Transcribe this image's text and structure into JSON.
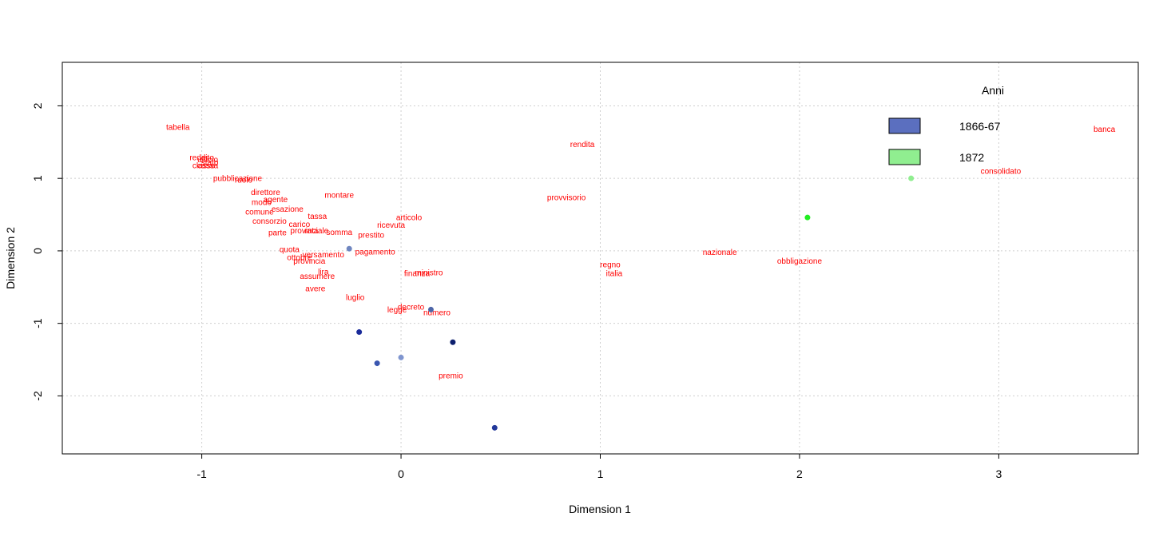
{
  "chart_data": {
    "type": "scatter",
    "title": "",
    "xlabel": "Dimension 1",
    "ylabel": "Dimension 2",
    "xlim": [
      -1.7,
      3.7
    ],
    "ylim": [
      -2.8,
      2.6
    ],
    "xticks": [
      -1,
      0,
      1,
      2,
      3
    ],
    "yticks": [
      -2,
      -1,
      0,
      1,
      2
    ],
    "grid": true,
    "label_color": "#ff0000",
    "words": [
      {
        "text": "tabella",
        "x": -1.12,
        "y": 1.71
      },
      {
        "text": "reddito",
        "x": -1.0,
        "y": 1.29
      },
      {
        "text": "ufficio",
        "x": -0.97,
        "y": 1.26
      },
      {
        "text": "stato",
        "x": -0.96,
        "y": 1.22
      },
      {
        "text": "classe",
        "x": -0.99,
        "y": 1.18
      },
      {
        "text": "cassa",
        "x": -0.97,
        "y": 1.18
      },
      {
        "text": "pubblicazione",
        "x": -0.82,
        "y": 1.0
      },
      {
        "text": "ruolo",
        "x": -0.79,
        "y": 0.98
      },
      {
        "text": "montare",
        "x": -0.31,
        "y": 0.77
      },
      {
        "text": "direttore",
        "x": -0.68,
        "y": 0.81
      },
      {
        "text": "agente",
        "x": -0.63,
        "y": 0.71
      },
      {
        "text": "modo",
        "x": -0.7,
        "y": 0.67
      },
      {
        "text": "esazione",
        "x": -0.57,
        "y": 0.58
      },
      {
        "text": "comune",
        "x": -0.71,
        "y": 0.54
      },
      {
        "text": "tassa",
        "x": -0.42,
        "y": 0.48
      },
      {
        "text": "consorzio",
        "x": -0.66,
        "y": 0.41
      },
      {
        "text": "carico",
        "x": -0.51,
        "y": 0.37
      },
      {
        "text": "provinciale",
        "x": -0.46,
        "y": 0.28
      },
      {
        "text": "rata",
        "x": -0.45,
        "y": 0.28
      },
      {
        "text": "parte",
        "x": -0.62,
        "y": 0.25
      },
      {
        "text": "somma",
        "x": -0.31,
        "y": 0.26
      },
      {
        "text": "quota",
        "x": -0.56,
        "y": 0.02
      },
      {
        "text": "versamento",
        "x": -0.39,
        "y": -0.05
      },
      {
        "text": "ottobre",
        "x": -0.51,
        "y": -0.09
      },
      {
        "text": "provincia",
        "x": -0.46,
        "y": -0.14
      },
      {
        "text": "lira",
        "x": -0.39,
        "y": -0.29
      },
      {
        "text": "assumere",
        "x": -0.42,
        "y": -0.35
      },
      {
        "text": "avere",
        "x": -0.43,
        "y": -0.52
      },
      {
        "text": "luglio",
        "x": -0.23,
        "y": -0.64
      },
      {
        "text": "pagamento",
        "x": -0.13,
        "y": -0.01
      },
      {
        "text": "articolo",
        "x": 0.04,
        "y": 0.46
      },
      {
        "text": "ricevuta",
        "x": -0.05,
        "y": 0.36
      },
      {
        "text": "prestito",
        "x": -0.15,
        "y": 0.22
      },
      {
        "text": "ministro",
        "x": 0.14,
        "y": -0.3
      },
      {
        "text": "finanza",
        "x": 0.08,
        "y": -0.31
      },
      {
        "text": "decreto",
        "x": 0.05,
        "y": -0.77
      },
      {
        "text": "legge",
        "x": -0.02,
        "y": -0.81
      },
      {
        "text": "numero",
        "x": 0.18,
        "y": -0.85
      },
      {
        "text": "premio",
        "x": 0.25,
        "y": -1.72
      },
      {
        "text": "rendita",
        "x": 0.91,
        "y": 1.47
      },
      {
        "text": "provvisorio",
        "x": 0.83,
        "y": 0.74
      },
      {
        "text": "regno",
        "x": 1.05,
        "y": -0.19
      },
      {
        "text": "italia",
        "x": 1.07,
        "y": -0.31
      },
      {
        "text": "nazionale",
        "x": 1.6,
        "y": -0.02
      },
      {
        "text": "obbligazione",
        "x": 2.0,
        "y": -0.14
      },
      {
        "text": "consolidato",
        "x": 3.01,
        "y": 1.1
      },
      {
        "text": "banca",
        "x": 3.53,
        "y": 1.68
      }
    ],
    "series": [
      {
        "name": "1866-67",
        "legend_color": "#5b6fbf",
        "points": [
          {
            "x": -0.26,
            "y": 0.03,
            "color": "#6f86c0"
          },
          {
            "x": -0.21,
            "y": -1.12,
            "color": "#1a2b9a"
          },
          {
            "x": -0.12,
            "y": -1.55,
            "color": "#3a56b0"
          },
          {
            "x": 0.0,
            "y": -1.47,
            "color": "#7f95cf"
          },
          {
            "x": 0.15,
            "y": -0.81,
            "color": "#4e66a8"
          },
          {
            "x": 0.26,
            "y": -1.26,
            "color": "#0d1f6e"
          },
          {
            "x": 0.47,
            "y": -2.44,
            "color": "#23389a"
          }
        ]
      },
      {
        "name": "1872",
        "legend_color": "#90ee90",
        "points": [
          {
            "x": 2.04,
            "y": 0.46,
            "color": "#22ee22"
          },
          {
            "x": 2.56,
            "y": 1.0,
            "color": "#90ee90"
          }
        ]
      }
    ],
    "legend": {
      "title": "Anni",
      "position": "top-right",
      "entries": [
        "1866-67",
        "1872"
      ]
    }
  }
}
